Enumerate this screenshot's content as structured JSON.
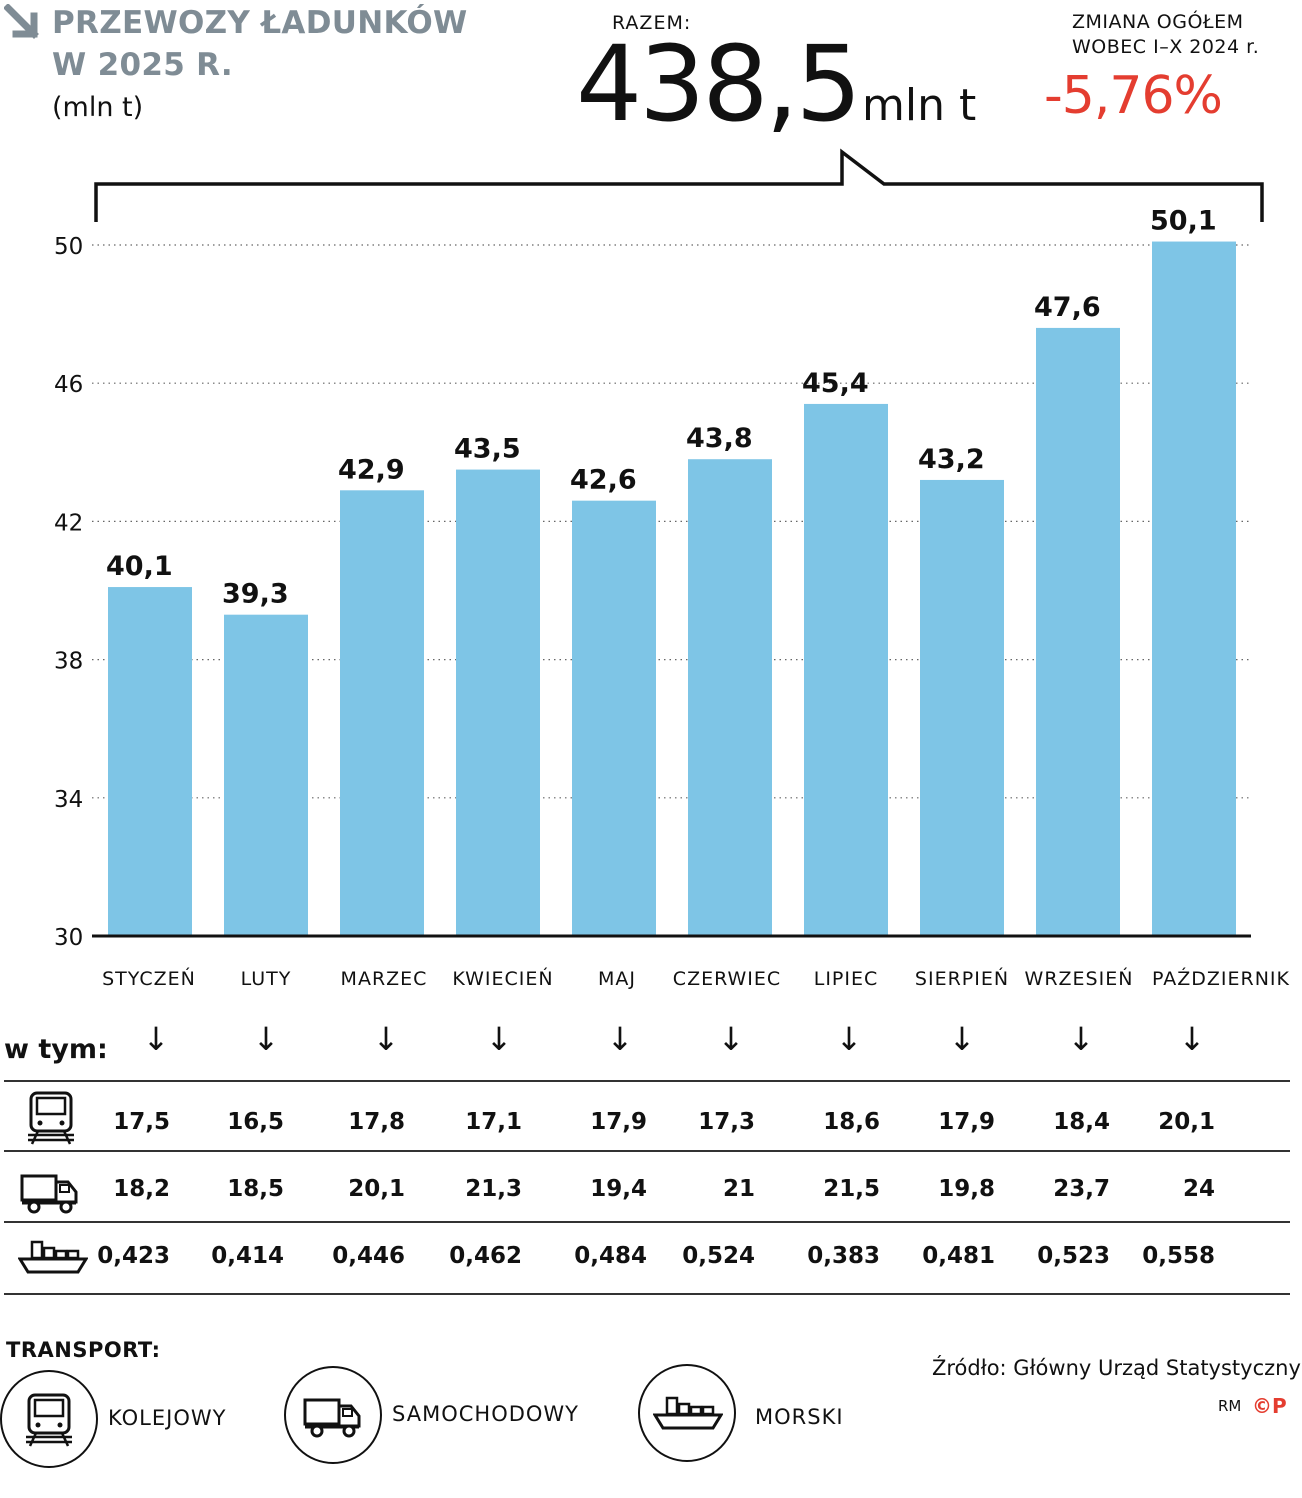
{
  "title_line1": "PRZEWOZY ŁADUNKÓW",
  "title_line2": "W 2025 R.",
  "unit": "(mln t)",
  "total": {
    "label": "RAZEM:",
    "value": "438,5",
    "unit": "mln t"
  },
  "change": {
    "label_line1": "ZMIANA OGÓŁEM",
    "label_line2": "WOBEC I–X 2024 r.",
    "value": "-5,76%"
  },
  "colors": {
    "bar": "#7ec5e6",
    "accent": "#e43d30",
    "title": "#7f8c95"
  },
  "chart_data": {
    "type": "bar",
    "categories": [
      "STYCZEŃ",
      "LUTY",
      "MARZEC",
      "KWIECIEŃ",
      "MAJ",
      "CZERWIEC",
      "LIPIEC",
      "SIERPIEŃ",
      "WRZESIEŃ",
      "PAŹDZIERNIK"
    ],
    "values": [
      40.1,
      39.3,
      42.9,
      43.5,
      42.6,
      43.8,
      45.4,
      43.2,
      47.6,
      50.1
    ],
    "value_labels": [
      "40,1",
      "39,3",
      "42,9",
      "43,5",
      "42,6",
      "43,8",
      "45,4",
      "43,2",
      "47,6",
      "50,1"
    ],
    "yticks": [
      30,
      34,
      38,
      42,
      46,
      50
    ],
    "ylim": [
      30,
      50
    ],
    "title": "PRZEWOZY ŁADUNKÓW W 2025 R.",
    "ylabel": "(mln t)",
    "xlabel": ""
  },
  "breakdown": {
    "label": "w tym:",
    "rows": [
      {
        "icon": "train-icon",
        "values": [
          "17,5",
          "16,5",
          "17,8",
          "17,1",
          "17,9",
          "17,3",
          "18,6",
          "17,9",
          "18,4",
          "20,1"
        ]
      },
      {
        "icon": "truck-icon",
        "values": [
          "18,2",
          "18,5",
          "20,1",
          "21,3",
          "19,4",
          "21",
          "21,5",
          "19,8",
          "23,7",
          "24"
        ]
      },
      {
        "icon": "ship-icon",
        "values": [
          "0,423",
          "0,414",
          "0,446",
          "0,462",
          "0,484",
          "0,524",
          "0,383",
          "0,481",
          "0,523",
          "0,558"
        ]
      }
    ]
  },
  "legend": {
    "title": "TRANSPORT:",
    "items": [
      {
        "icon": "train-icon",
        "label": "KOLEJOWY"
      },
      {
        "icon": "truck-icon",
        "label": "SAMOCHODOWY"
      },
      {
        "icon": "ship-icon",
        "label": "MORSKI"
      }
    ]
  },
  "source": "Źródło: Główny Urząd Statystyczny",
  "credit": "RM",
  "logo": "©P"
}
